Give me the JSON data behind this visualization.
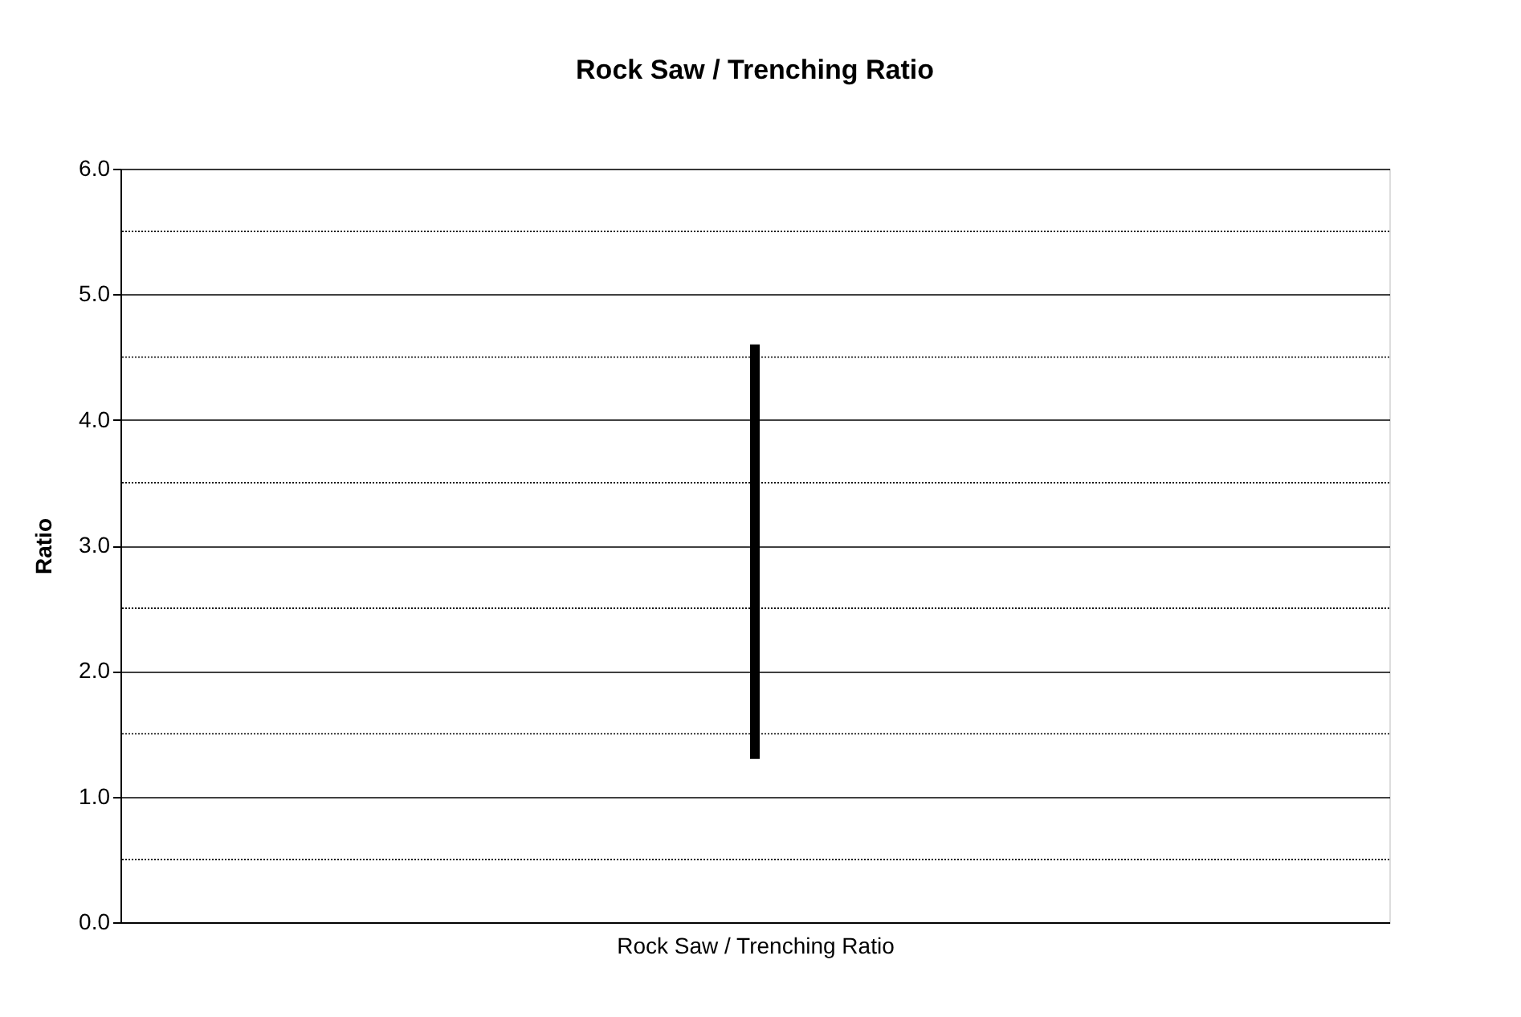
{
  "chart_data": {
    "type": "bar",
    "title": "Rock Saw / Trenching Ratio",
    "ylabel": "Ratio",
    "categories": [
      "Rock Saw / Trenching Ratio"
    ],
    "values": [
      3.3
    ],
    "base": [
      1.3
    ],
    "color": "#000000",
    "ylim": [
      0,
      6
    ],
    "yticks": [
      {
        "value": 0,
        "label": "0.0"
      },
      {
        "value": 0.5,
        "label": null
      },
      {
        "value": 1,
        "label": "1.0"
      },
      {
        "value": 1.5,
        "label": null
      },
      {
        "value": 2,
        "label": "2.0"
      },
      {
        "value": 2.5,
        "label": null
      },
      {
        "value": 3,
        "label": "3.0"
      },
      {
        "value": 3.5,
        "label": null
      },
      {
        "value": 4,
        "label": "4.0"
      },
      {
        "value": 4.5,
        "label": null
      },
      {
        "value": 5,
        "label": "5.0"
      },
      {
        "value": 5.5,
        "label": null
      },
      {
        "value": 6,
        "label": "6.0"
      }
    ],
    "grid": "y"
  }
}
